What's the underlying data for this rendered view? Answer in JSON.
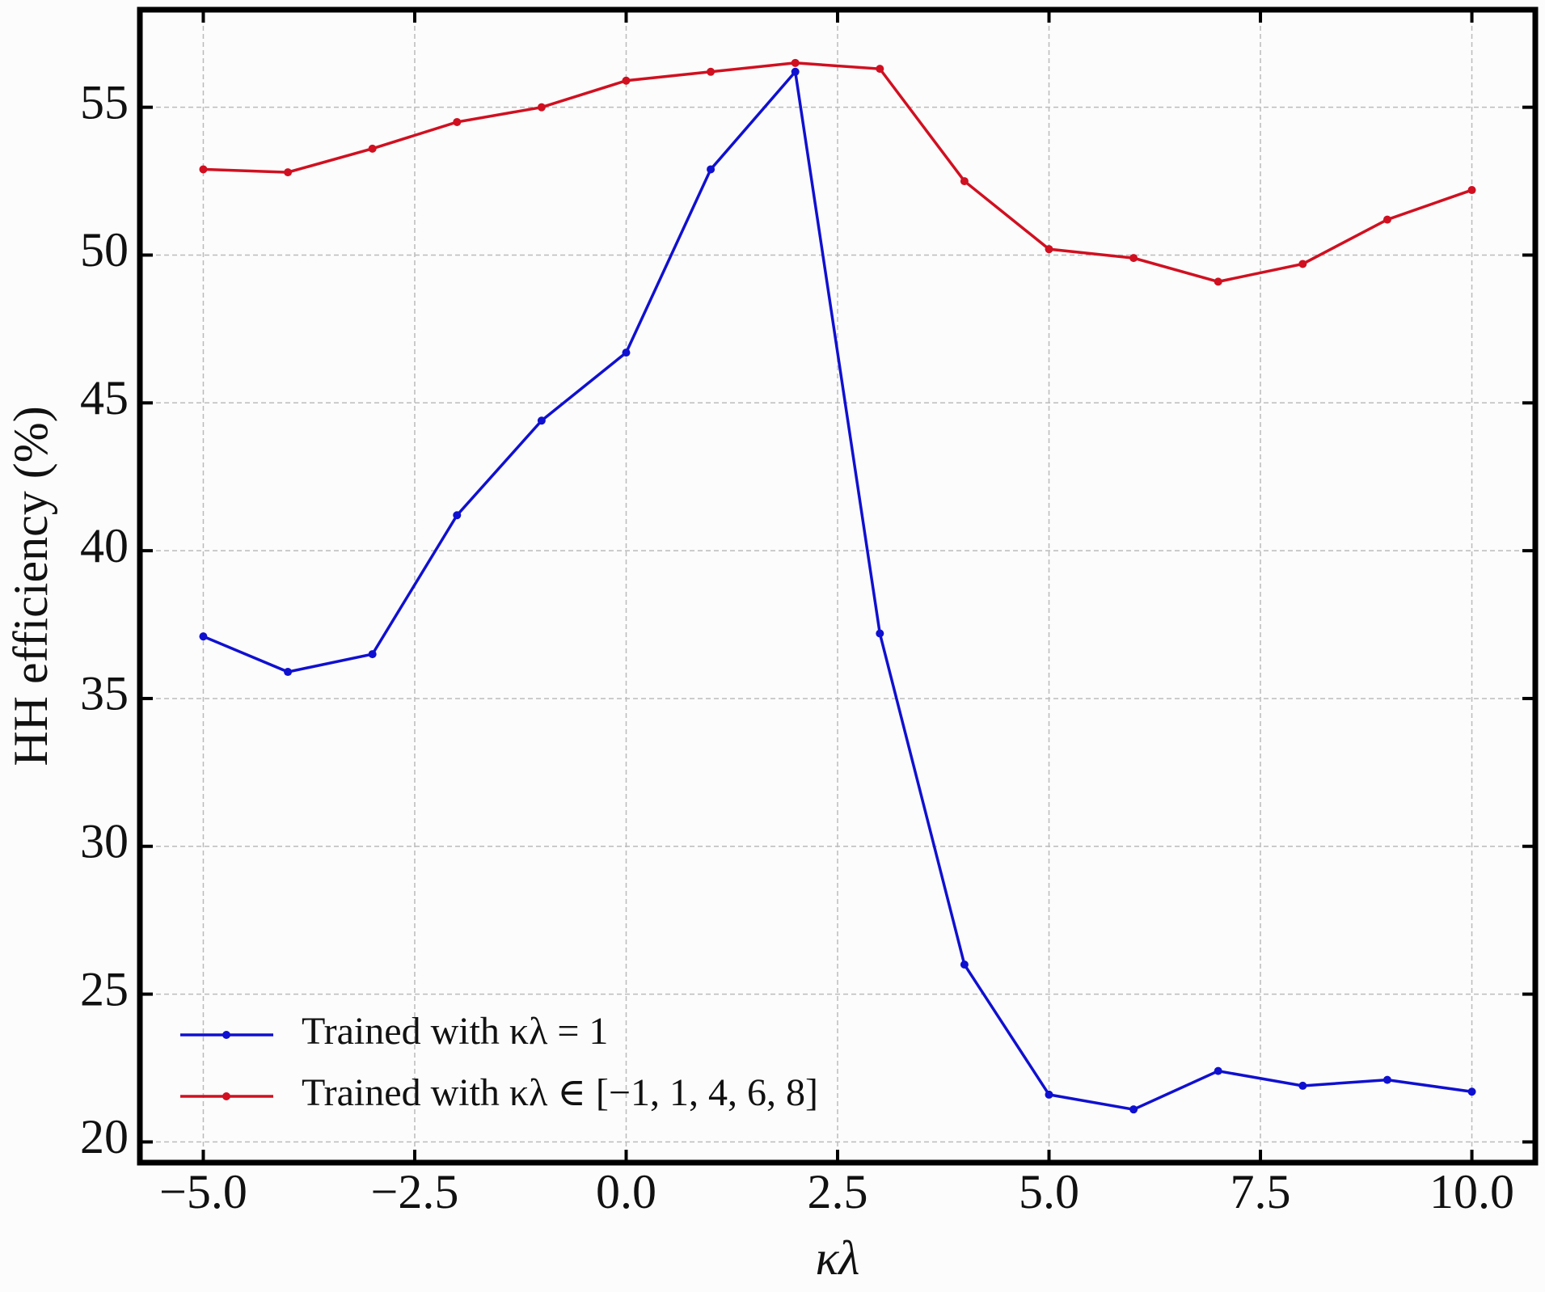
{
  "chart_data": {
    "type": "line",
    "x_label": "κλ",
    "y_label": "HH efficiency (%)",
    "x": [
      -5,
      -4,
      -3,
      -2,
      -1,
      0,
      1,
      2,
      3,
      4,
      5,
      6,
      7,
      8,
      9,
      10
    ],
    "series": [
      {
        "name": "Trained with κλ = 1",
        "color": "#1010d0",
        "values": [
          37.1,
          35.9,
          36.5,
          41.2,
          44.4,
          46.7,
          52.9,
          56.2,
          37.2,
          26.0,
          21.6,
          21.1,
          22.4,
          21.9,
          22.1,
          21.7
        ]
      },
      {
        "name": "Trained with κλ ∈ [−1, 1, 4, 6, 8]",
        "color": "#d01020",
        "values": [
          52.9,
          52.8,
          53.6,
          54.5,
          55.0,
          55.9,
          56.2,
          56.5,
          56.3,
          52.5,
          50.2,
          49.9,
          49.1,
          49.7,
          51.2,
          52.2
        ]
      }
    ],
    "xlim": [
      -5.75,
      10.75
    ],
    "ylim": [
      19.3,
      58.3
    ],
    "xticks": [
      {
        "value": -5,
        "label": "−5.0"
      },
      {
        "value": -2.5,
        "label": "−2.5"
      },
      {
        "value": 0,
        "label": "0.0"
      },
      2.5,
      {
        "value": 5,
        "label": "5.0"
      },
      7.5,
      {
        "value": 10,
        "label": "10.0"
      }
    ],
    "yticks": [
      20,
      25,
      30,
      35,
      40,
      45,
      50,
      55
    ],
    "grid": true,
    "legend": "lower left"
  }
}
